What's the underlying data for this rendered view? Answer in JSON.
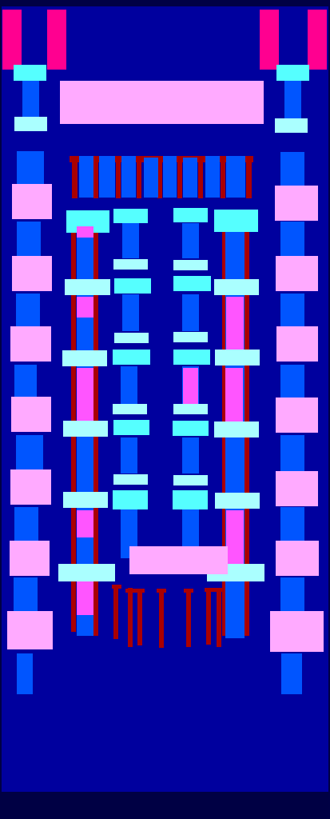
{
  "palette": {
    "frame": "#000044",
    "field": "#00009e",
    "magenta": "#ff0090",
    "pink": "#ffaaff",
    "cyan": "#55ffff",
    "light_cyan": "#aaffff",
    "blue": "#0055ff",
    "violet": "#ff55ff",
    "dark_red": "#aa0000"
  }
}
